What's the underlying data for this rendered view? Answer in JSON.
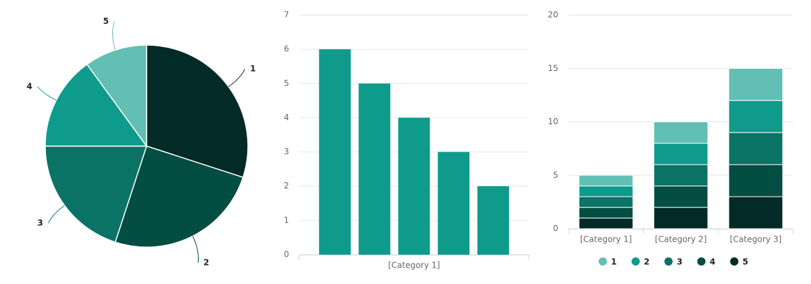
{
  "chart_data": [
    {
      "type": "pie",
      "categories": [
        "1",
        "2",
        "3",
        "4",
        "5"
      ],
      "values": [
        6,
        5,
        4,
        3,
        2
      ],
      "colors": [
        "#022b27",
        "#034d43",
        "#0b7266",
        "#0f9b8c",
        "#62bfb3"
      ]
    },
    {
      "type": "bar",
      "categories": [
        "[Category 1]"
      ],
      "series": [
        {
          "color": "#0f9b8c",
          "values": [
            6
          ]
        },
        {
          "color": "#0f9b8c",
          "values": [
            5
          ]
        },
        {
          "color": "#0f9b8c",
          "values": [
            4
          ]
        },
        {
          "color": "#0f9b8c",
          "values": [
            3
          ]
        },
        {
          "color": "#0f9b8c",
          "values": [
            2
          ]
        }
      ],
      "ylim": [
        0,
        7
      ],
      "yticks": [
        0,
        1,
        2,
        3,
        4,
        5,
        6,
        7
      ],
      "grid": true
    },
    {
      "type": "stacked-bar",
      "categories": [
        "[Category 1]",
        "[Category 2]",
        "[Category 3]"
      ],
      "series": [
        {
          "name": "1",
          "color": "#62bfb3",
          "values": [
            1,
            2,
            3
          ]
        },
        {
          "name": "2",
          "color": "#0f9b8c",
          "values": [
            1,
            2,
            3
          ]
        },
        {
          "name": "3",
          "color": "#0b7266",
          "values": [
            1,
            2,
            3
          ]
        },
        {
          "name": "4",
          "color": "#034d43",
          "values": [
            1,
            2,
            3
          ]
        },
        {
          "name": "5",
          "color": "#022b27",
          "values": [
            1,
            2,
            3
          ]
        }
      ],
      "ylim": [
        0,
        20
      ],
      "yticks": [
        0,
        5,
        10,
        15,
        20
      ],
      "grid": true,
      "legend": "bottom"
    }
  ]
}
